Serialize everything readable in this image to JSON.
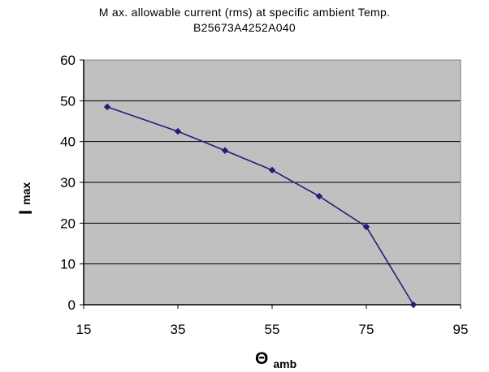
{
  "chart_data": {
    "type": "scatter",
    "title": "M ax. allowable current (rms) at specific ambient Temp.",
    "subtitle": "B25673A4252A040",
    "xlabel": {
      "symbol": "Θ",
      "subscript": "amb"
    },
    "ylabel": {
      "symbol": "I",
      "subscript": "max"
    },
    "xlim": [
      15,
      95
    ],
    "ylim": [
      0,
      60
    ],
    "xticks": [
      15,
      35,
      55,
      75,
      95
    ],
    "yticks": [
      0,
      10,
      20,
      30,
      40,
      50,
      60
    ],
    "grid": "horizontal",
    "legend": "none",
    "plot_background": "#c0c0c0",
    "series_color": "#1f1f78",
    "series": [
      {
        "x": [
          20,
          35,
          45,
          55,
          65,
          75,
          85
        ],
        "y": [
          48.5,
          42.5,
          37.8,
          33.0,
          26.6,
          19.1,
          0
        ]
      }
    ]
  }
}
